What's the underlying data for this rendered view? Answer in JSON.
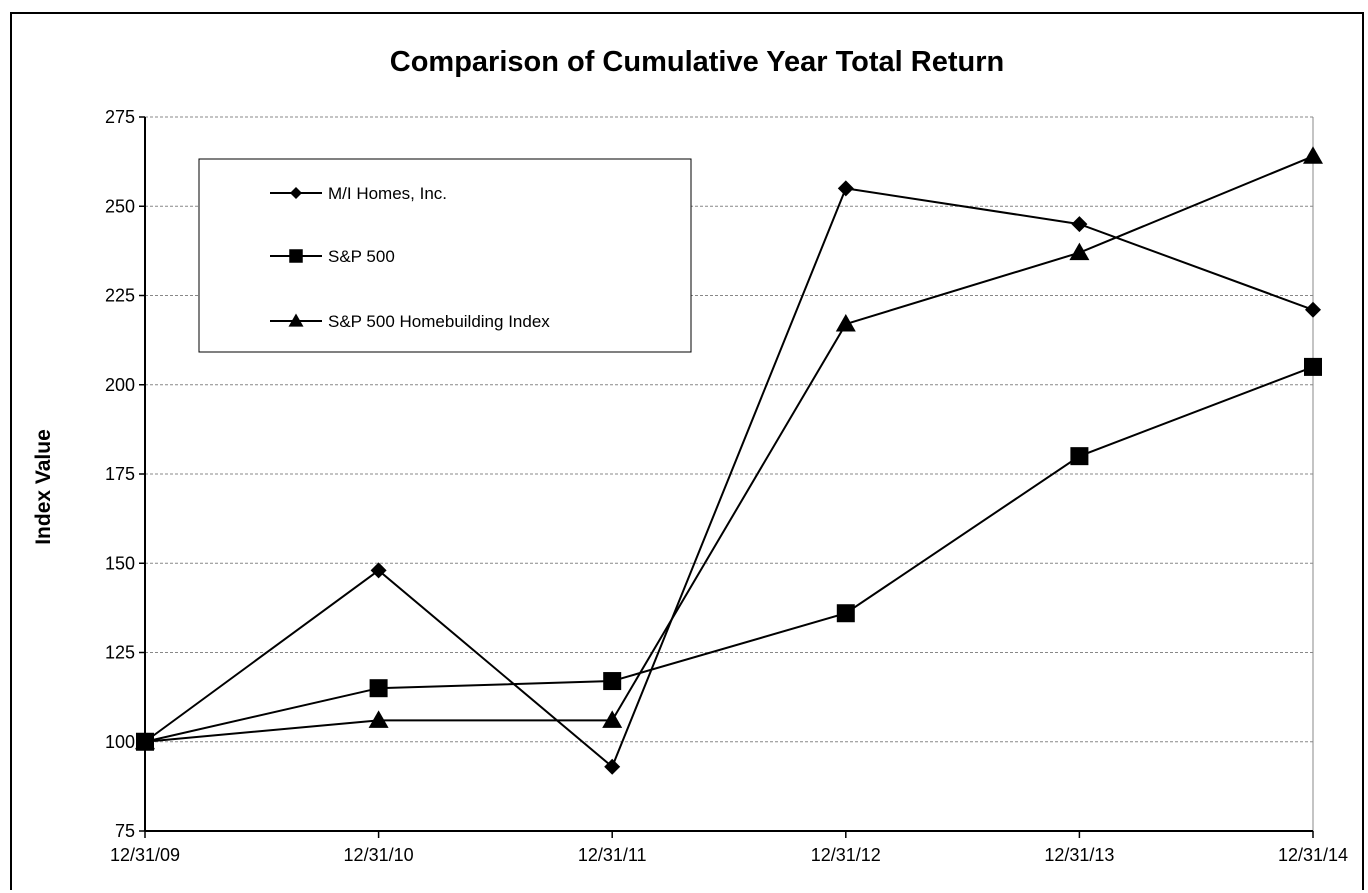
{
  "chart_data": {
    "type": "line",
    "title": "Comparison of Cumulative Year Total Return",
    "xlabel": "",
    "ylabel": "Index Value",
    "categories": [
      "12/31/09",
      "12/31/10",
      "12/31/11",
      "12/31/12",
      "12/31/13",
      "12/31/14"
    ],
    "ylim": [
      75,
      275
    ],
    "yticks": [
      75,
      100,
      125,
      150,
      175,
      200,
      225,
      250,
      275
    ],
    "grid": "horizontal dashed",
    "legend_position": "top-left",
    "series": [
      {
        "name": "M/I Homes, Inc.",
        "marker": "diamond",
        "values": [
          100,
          148,
          93,
          255,
          245,
          221
        ]
      },
      {
        "name": "S&P 500",
        "marker": "square",
        "values": [
          100,
          115,
          117,
          136,
          180,
          205
        ]
      },
      {
        "name": "S&P 500 Homebuilding Index",
        "marker": "triangle",
        "values": [
          100,
          106,
          106,
          217,
          237,
          264
        ]
      }
    ]
  }
}
